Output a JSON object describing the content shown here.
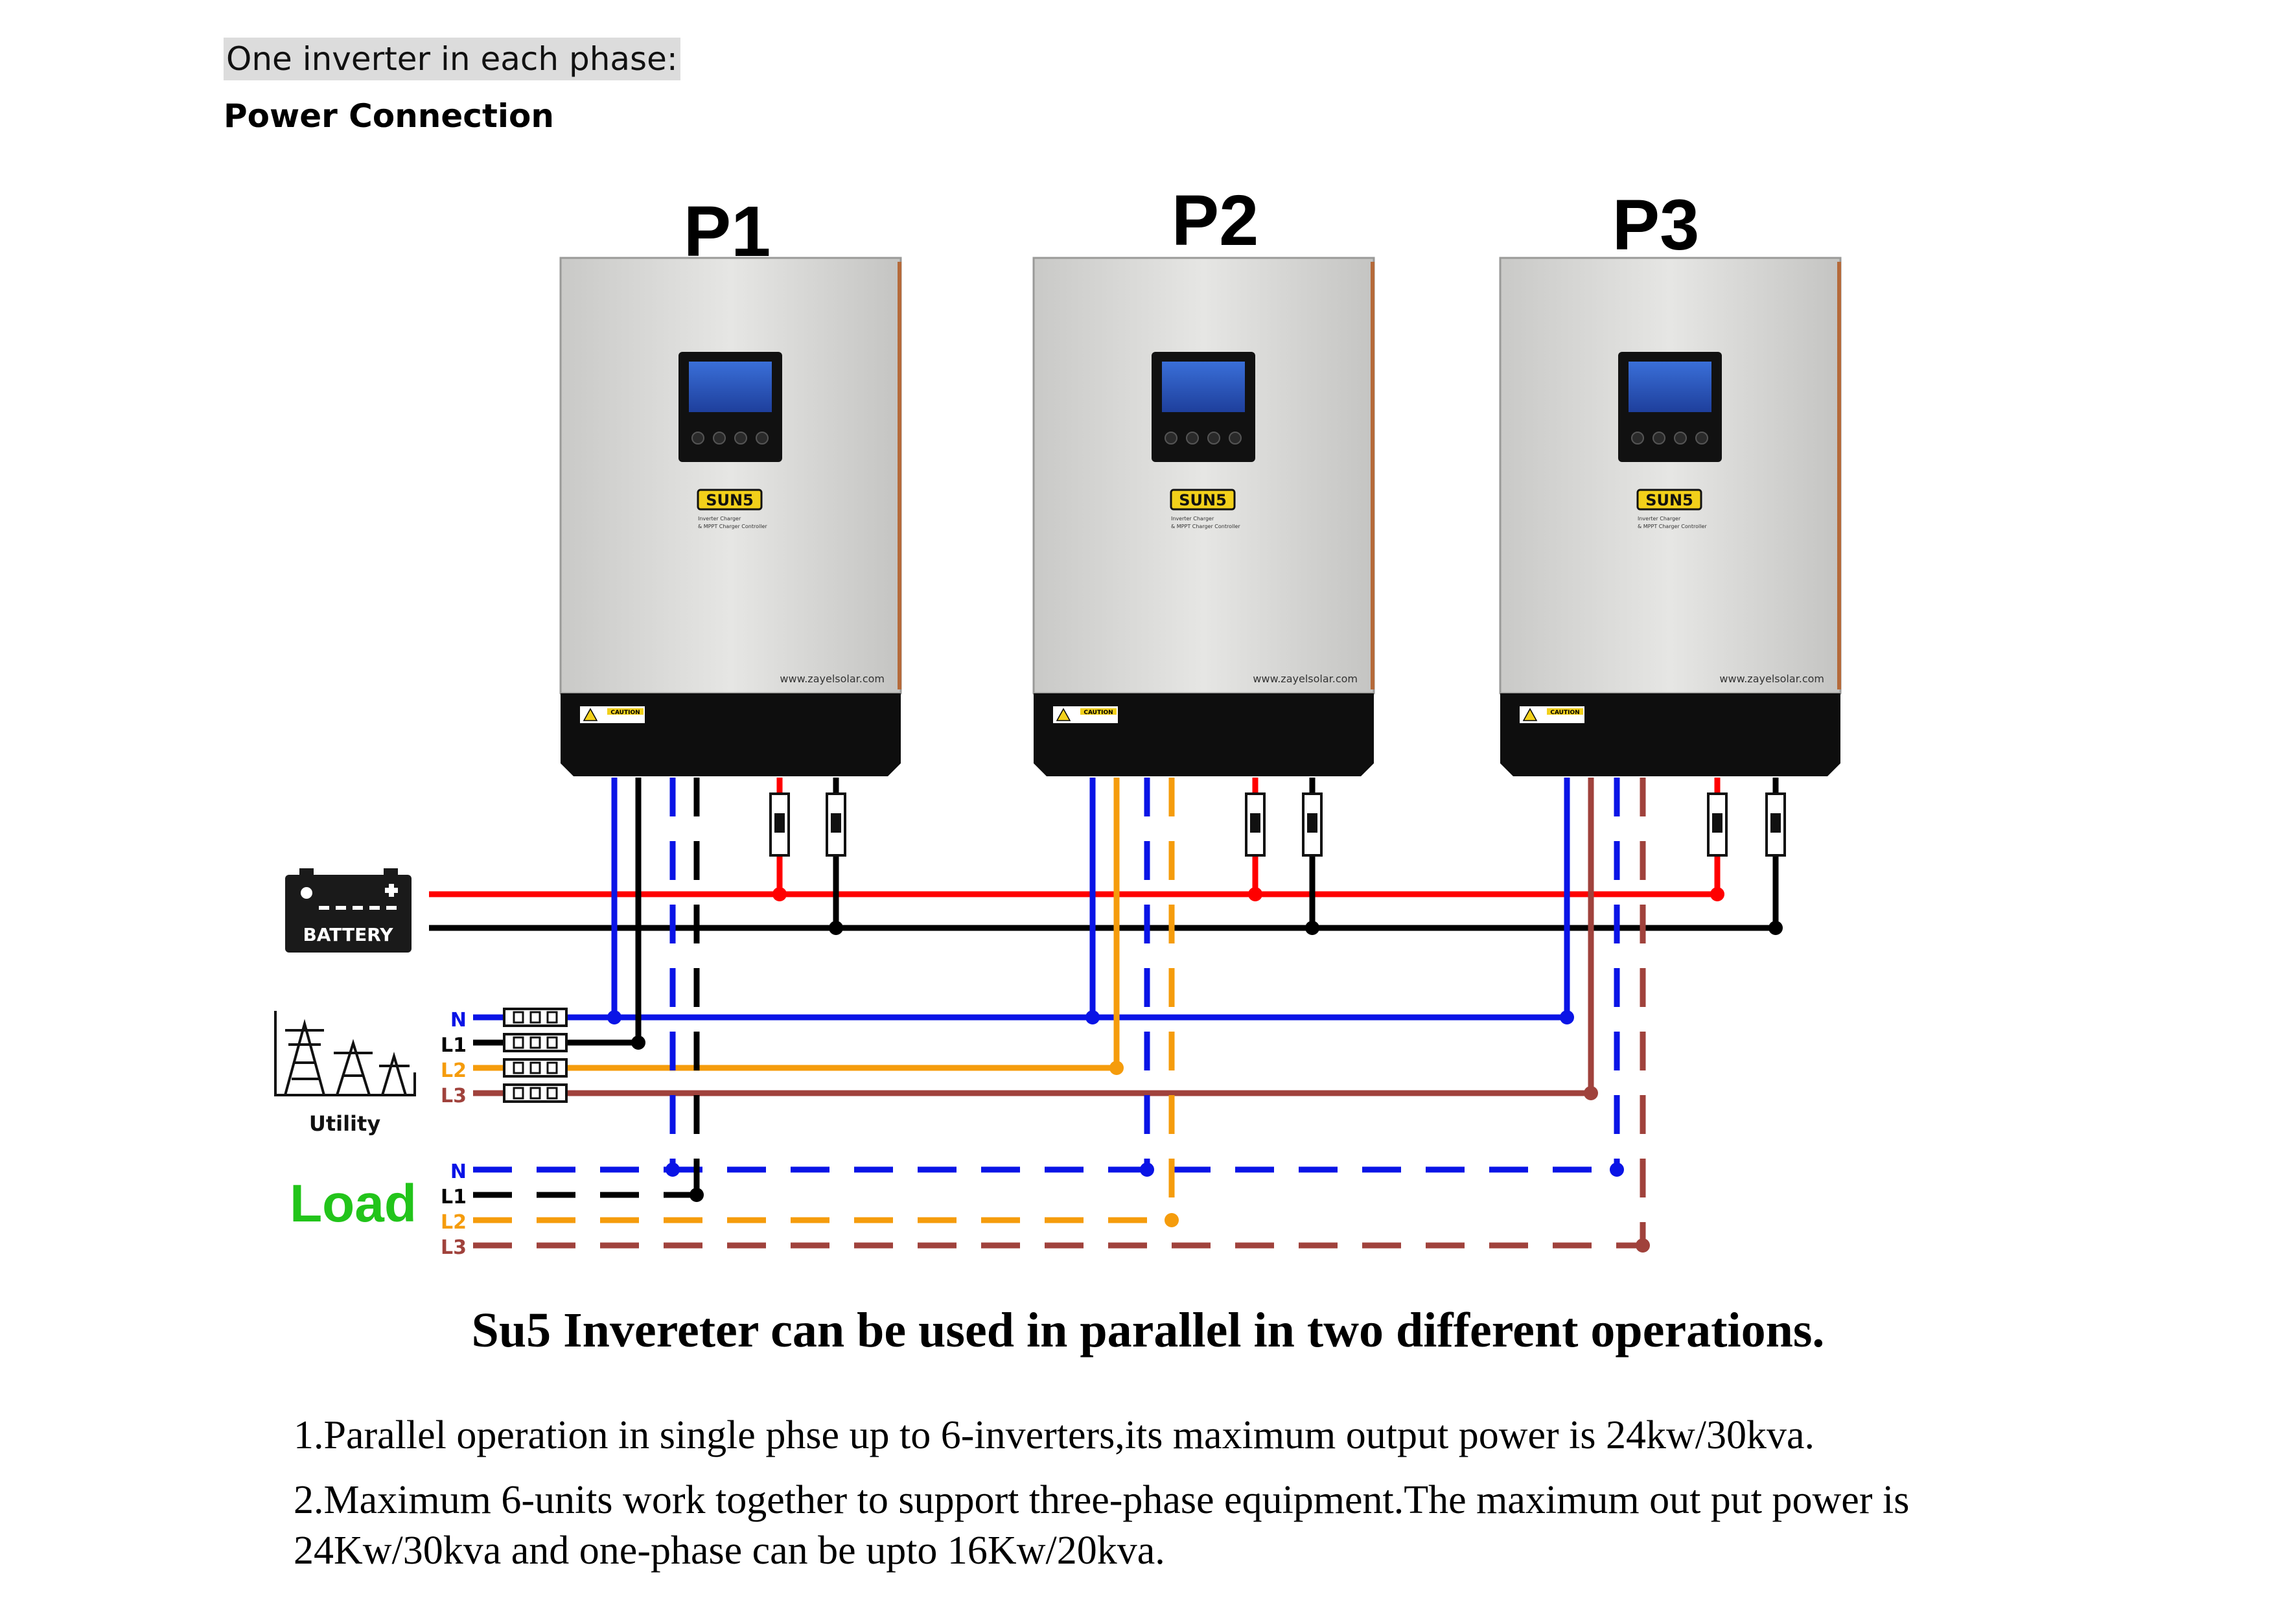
{
  "header": {
    "subtitle": "One inverter in each phase:",
    "section": "Power Connection"
  },
  "inverters": [
    {
      "label": "P1",
      "website": "www.zayelsolar.com",
      "brand": "SUN5",
      "caution": "CAUTION",
      "desc1": "Inverter Charger",
      "desc2": "& MPPT Charger Controller"
    },
    {
      "label": "P2",
      "website": "www.zayelsolar.com",
      "brand": "SUN5",
      "caution": "CAUTION",
      "desc1": "Inverter Charger",
      "desc2": "& MPPT Charger Controller"
    },
    {
      "label": "P3",
      "website": "www.zayelsolar.com",
      "brand": "SUN5",
      "caution": "CAUTION",
      "desc1": "Inverter Charger",
      "desc2": "& MPPT Charger Controller"
    }
  ],
  "battery": {
    "label": "BATTERY"
  },
  "utility": {
    "label": "Utility",
    "lines": [
      "N",
      "L1",
      "L2",
      "L3"
    ]
  },
  "load": {
    "label": "Load",
    "lines": [
      "N",
      "L1",
      "L2",
      "L3"
    ]
  },
  "colors": {
    "neutral": "#0a14e6",
    "l1": "#000000",
    "l2": "#f59c0c",
    "l3": "#a0423c",
    "battery_pos": "#ff0000",
    "battery_neg": "#000000",
    "load_label": "#22c41a"
  },
  "footer": {
    "title": "Su5 Invereter can be used in parallel in two different operations.",
    "note1": "1.Parallel operation in single phse up to 6-inverters,its maximum output power is 24kw/30kva.",
    "note2": "2.Maximum 6-units work together to support three-phase equipment.The maximum out put power is 24Kw/30kva and one-phase can be upto 16Kw/20kva."
  }
}
